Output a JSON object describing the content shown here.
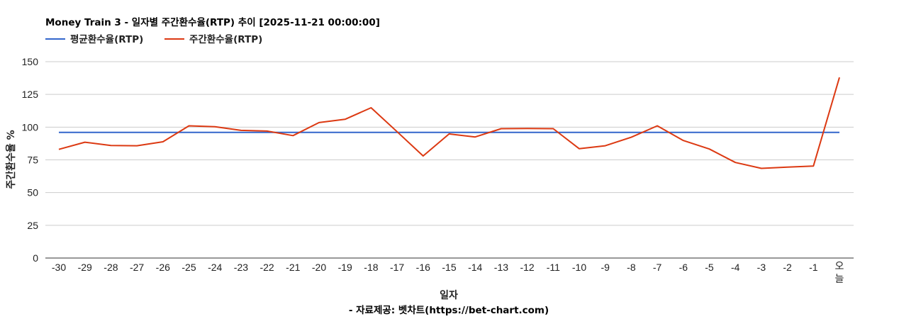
{
  "chart_data": {
    "type": "line",
    "title": "Money Train 3 - 일자별 주간환수율(RTP) 추이 [2025-11-21 00:00:00]",
    "xlabel": "일자",
    "ylabel": "주간환수율 %",
    "source": "- 자료제공: 벳차트(https://bet-chart.com)",
    "categories": [
      "-30",
      "-29",
      "-28",
      "-27",
      "-26",
      "-25",
      "-24",
      "-23",
      "-22",
      "-21",
      "-20",
      "-19",
      "-18",
      "-17",
      "-16",
      "-15",
      "-14",
      "-13",
      "-12",
      "-11",
      "-10",
      "-9",
      "-8",
      "-7",
      "-6",
      "-5",
      "-4",
      "-3",
      "-2",
      "-1",
      "오늘"
    ],
    "ylim": [
      0,
      150
    ],
    "yticks": [
      "0",
      "25",
      "50",
      "75",
      "100",
      "125",
      "150"
    ],
    "grid": true,
    "legend_position": "top-left",
    "series": [
      {
        "name": "평균환수율(RTP)",
        "color": "#3366cc",
        "values": [
          96,
          96,
          96,
          96,
          96,
          96,
          96,
          96,
          96,
          96,
          96,
          96,
          96,
          96,
          96,
          96,
          96,
          96,
          96,
          96,
          96,
          96,
          96,
          96,
          96,
          96,
          96,
          96,
          96,
          96,
          96
        ]
      },
      {
        "name": "주간환수율(RTP)",
        "color": "#dc3912",
        "values": [
          83,
          88.5,
          86,
          85.8,
          88.8,
          101,
          100.3,
          97.5,
          97,
          93.5,
          103.5,
          106,
          114.8,
          96.5,
          78,
          94.8,
          92.5,
          98.8,
          99,
          98.8,
          83.5,
          85.8,
          92.3,
          101,
          89.8,
          83.3,
          73,
          68.5,
          69.5,
          70.3,
          138
        ]
      }
    ]
  }
}
